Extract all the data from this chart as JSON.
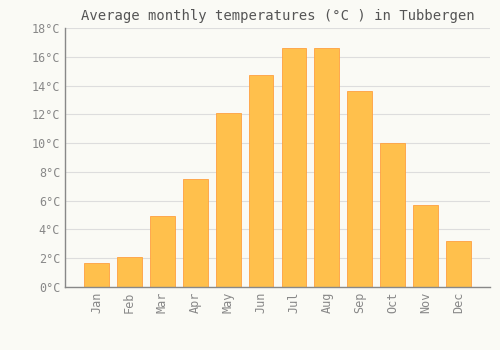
{
  "title": "Average monthly temperatures (°C ) in Tubbergen",
  "months": [
    "Jan",
    "Feb",
    "Mar",
    "Apr",
    "May",
    "Jun",
    "Jul",
    "Aug",
    "Sep",
    "Oct",
    "Nov",
    "Dec"
  ],
  "values": [
    1.7,
    2.1,
    4.9,
    7.5,
    12.1,
    14.7,
    16.6,
    16.6,
    13.6,
    10.0,
    5.7,
    3.2
  ],
  "bar_color": "#FFC04C",
  "bar_edge_color": "#FFA040",
  "background_color": "#FAFAF5",
  "grid_color": "#DDDDDD",
  "title_fontsize": 10,
  "tick_fontsize": 8.5,
  "ylim": [
    0,
    18
  ],
  "yticks": [
    0,
    2,
    4,
    6,
    8,
    10,
    12,
    14,
    16,
    18
  ]
}
